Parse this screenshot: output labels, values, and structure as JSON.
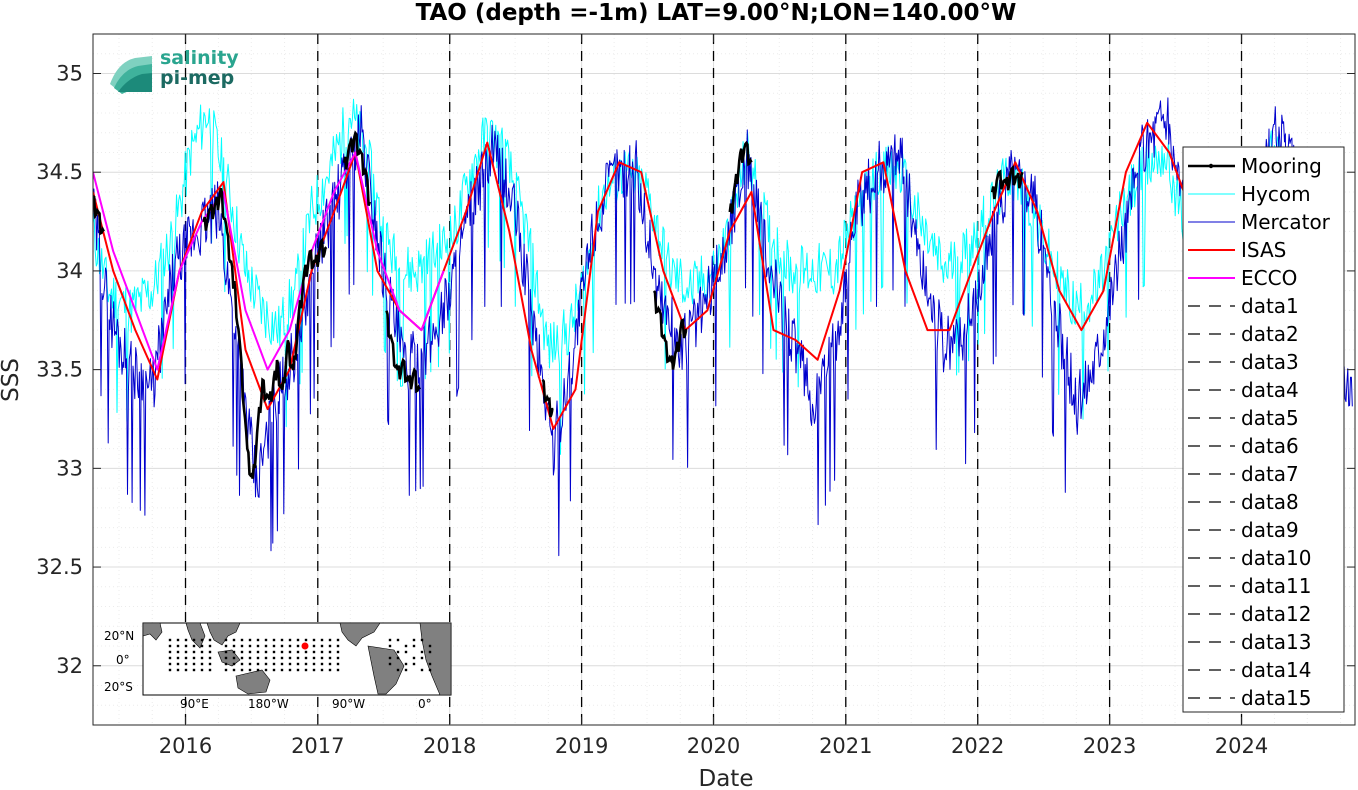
{
  "chart_data": {
    "type": "line",
    "title": "TAO (depth =-1m) LAT=9.00°N;LON=140.00°W",
    "xlabel": "Date",
    "ylabel": "SSS",
    "xlim": [
      "2015-04-20",
      "2024-11-10"
    ],
    "ylim": [
      31.7,
      35.2
    ],
    "x_ticks": [
      "2016",
      "2017",
      "2018",
      "2019",
      "2020",
      "2021",
      "2022",
      "2023",
      "2024"
    ],
    "y_ticks": [
      32,
      32.5,
      33,
      33.5,
      34,
      34.5,
      35
    ],
    "grid": true,
    "legend_position": "right",
    "vertical_dashed_lines": [
      "2016-01-01",
      "2017-01-01",
      "2018-01-01",
      "2019-01-01",
      "2020-01-01",
      "2021-01-01",
      "2022-01-01",
      "2023-01-01",
      "2024-01-01"
    ],
    "series": [
      {
        "name": "Mooring",
        "color": "#000000",
        "style": "solid-thick",
        "segments": [
          [
            [
              "2015-04-20",
              34.38
            ],
            [
              "2015-05-05",
              34.3
            ],
            [
              "2015-05-20",
              34.2
            ]
          ],
          [
            [
              "2016-02-20",
              34.25
            ],
            [
              "2016-03-10",
              34.32
            ],
            [
              "2016-03-25",
              34.35
            ],
            [
              "2016-04-08",
              34.42
            ],
            [
              "2016-04-25",
              34.2
            ],
            [
              "2016-05-15",
              33.95
            ],
            [
              "2016-06-01",
              33.6
            ],
            [
              "2016-06-20",
              33.1
            ],
            [
              "2016-07-05",
              32.95
            ],
            [
              "2016-07-20",
              33.25
            ],
            [
              "2016-08-01",
              33.45
            ],
            [
              "2016-08-20",
              33.35
            ],
            [
              "2016-09-10",
              33.55
            ],
            [
              "2016-09-25",
              33.4
            ],
            [
              "2016-10-10",
              33.65
            ],
            [
              "2016-10-25",
              33.5
            ],
            [
              "2016-11-10",
              33.8
            ],
            [
              "2016-11-25",
              34.0
            ],
            [
              "2016-12-10",
              34.1
            ],
            [
              "2016-12-25",
              34.05
            ],
            [
              "2017-01-10",
              34.15
            ],
            [
              "2017-01-25",
              34.12
            ]
          ],
          [
            [
              "2017-03-15",
              34.55
            ],
            [
              "2017-04-01",
              34.65
            ],
            [
              "2017-04-15",
              34.7
            ],
            [
              "2017-05-01",
              34.6
            ],
            [
              "2017-05-15",
              34.5
            ],
            [
              "2017-05-25",
              34.35
            ]
          ],
          [
            [
              "2017-07-10",
              33.8
            ],
            [
              "2017-07-25",
              33.65
            ],
            [
              "2017-08-10",
              33.5
            ],
            [
              "2017-08-25",
              33.55
            ],
            [
              "2017-09-10",
              33.45
            ],
            [
              "2017-09-25",
              33.5
            ],
            [
              "2017-10-10",
              33.4
            ]
          ],
          [
            [
              "2018-09-15",
              33.45
            ],
            [
              "2018-10-01",
              33.35
            ],
            [
              "2018-10-15",
              33.3
            ]
          ],
          [
            [
              "2019-07-20",
              33.9
            ],
            [
              "2019-08-05",
              33.8
            ],
            [
              "2019-08-20",
              33.65
            ],
            [
              "2019-09-05",
              33.55
            ],
            [
              "2019-09-20",
              33.6
            ],
            [
              "2019-10-05",
              33.75
            ],
            [
              "2019-10-20",
              33.7
            ]
          ],
          [
            [
              "2020-02-15",
              34.3
            ],
            [
              "2020-03-01",
              34.45
            ],
            [
              "2020-03-15",
              34.6
            ],
            [
              "2020-04-01",
              34.65
            ],
            [
              "2020-04-15",
              34.55
            ]
          ],
          [
            [
              "2022-02-10",
              34.4
            ],
            [
              "2022-03-01",
              34.5
            ],
            [
              "2022-03-20",
              34.45
            ],
            [
              "2022-04-05",
              34.52
            ],
            [
              "2022-04-20",
              34.48
            ],
            [
              "2022-05-05",
              34.5
            ]
          ]
        ]
      },
      {
        "name": "Hycom",
        "color": "#00FFFF",
        "style": "solid-thin",
        "x": [
          "2015-04-20",
          "2015-06-01",
          "2015-08-01",
          "2015-10-01",
          "2015-12-01",
          "2016-01-15",
          "2016-03-01",
          "2016-05-01",
          "2016-06-15",
          "2016-08-01",
          "2016-09-15",
          "2016-11-01",
          "2016-12-15",
          "2017-02-01",
          "2017-04-01",
          "2017-05-15",
          "2017-07-01",
          "2017-08-15",
          "2017-10-01",
          "2017-12-01",
          "2018-01-15",
          "2018-03-01",
          "2018-04-15",
          "2018-06-01",
          "2018-08-01",
          "2018-10-01",
          "2018-12-01",
          "2019-01-15",
          "2019-03-01",
          "2019-05-01",
          "2019-07-01",
          "2019-09-01",
          "2019-11-01",
          "2020-01-01",
          "2020-02-15",
          "2020-04-01",
          "2020-06-01",
          "2020-08-01",
          "2020-10-01",
          "2020-12-01",
          "2021-02-01",
          "2021-04-01",
          "2021-06-01",
          "2021-08-01",
          "2021-10-01",
          "2021-12-01",
          "2022-02-01",
          "2022-04-01",
          "2022-06-01",
          "2022-08-01",
          "2022-10-01",
          "2022-12-01",
          "2023-02-01",
          "2023-04-01",
          "2023-06-01",
          "2023-08-01",
          "2023-10-01",
          "2023-12-01",
          "2024-02-01",
          "2024-04-01",
          "2024-06-01"
        ],
        "values": [
          34.2,
          33.9,
          33.8,
          33.9,
          34.2,
          34.6,
          34.8,
          34.4,
          34.0,
          33.8,
          33.7,
          33.9,
          34.3,
          34.5,
          34.8,
          34.6,
          34.2,
          34.0,
          34.0,
          34.1,
          34.2,
          34.5,
          34.7,
          34.6,
          34.2,
          33.6,
          33.7,
          34.0,
          34.4,
          34.5,
          34.4,
          34.0,
          33.9,
          34.0,
          34.2,
          34.6,
          34.2,
          34.0,
          34.0,
          34.0,
          34.3,
          34.5,
          34.5,
          34.2,
          34.0,
          34.1,
          34.3,
          34.5,
          34.3,
          34.0,
          33.8,
          33.9,
          34.3,
          34.5,
          34.6,
          34.2,
          34.1,
          34.1,
          34.4,
          34.6,
          34.5
        ]
      },
      {
        "name": "Mercator",
        "color": "#0000CD",
        "style": "solid-thin",
        "x": [
          "2015-04-20",
          "2015-06-01",
          "2015-08-01",
          "2015-10-01",
          "2015-12-01",
          "2016-02-01",
          "2016-04-01",
          "2016-06-01",
          "2016-07-15",
          "2016-09-01",
          "2016-11-01",
          "2017-01-01",
          "2017-03-01",
          "2017-05-01",
          "2017-07-01",
          "2017-09-01",
          "2017-11-01",
          "2018-01-01",
          "2018-03-01",
          "2018-05-01",
          "2018-07-01",
          "2018-09-01",
          "2018-10-15",
          "2018-12-01",
          "2019-02-01",
          "2019-04-01",
          "2019-06-01",
          "2019-08-01",
          "2019-10-01",
          "2019-12-01",
          "2020-02-01",
          "2020-04-01",
          "2020-06-01",
          "2020-08-01",
          "2020-10-01",
          "2020-12-01",
          "2021-02-01",
          "2021-04-01",
          "2021-06-01",
          "2021-08-01",
          "2021-10-01",
          "2021-12-01",
          "2022-02-01",
          "2022-04-01",
          "2022-06-01",
          "2022-08-01",
          "2022-10-01",
          "2022-12-01",
          "2023-02-01",
          "2023-04-01",
          "2023-06-01",
          "2023-08-01",
          "2023-10-01",
          "2023-12-01",
          "2024-02-01",
          "2024-04-01",
          "2024-06-01",
          "2024-08-01",
          "2024-10-01",
          "2024-11-05"
        ],
        "values": [
          34.3,
          33.8,
          33.5,
          33.4,
          34.0,
          34.2,
          34.3,
          33.5,
          32.9,
          33.3,
          33.6,
          34.1,
          34.4,
          34.7,
          34.0,
          33.5,
          33.6,
          33.9,
          34.3,
          34.6,
          34.3,
          33.6,
          33.1,
          33.5,
          34.2,
          34.5,
          34.5,
          33.9,
          33.6,
          33.8,
          34.1,
          34.6,
          34.0,
          33.7,
          33.3,
          33.6,
          34.3,
          34.5,
          34.6,
          34.0,
          33.6,
          33.7,
          34.1,
          34.5,
          34.4,
          33.8,
          33.3,
          33.6,
          34.1,
          34.6,
          34.8,
          34.3,
          33.9,
          34.0,
          34.3,
          34.7,
          34.5,
          33.9,
          33.5,
          33.4
        ]
      },
      {
        "name": "ISAS",
        "color": "#FF0000",
        "style": "solid-medium",
        "x": [
          "2015-04-20",
          "2015-06-15",
          "2015-08-15",
          "2015-10-15",
          "2015-12-15",
          "2016-02-15",
          "2016-04-15",
          "2016-06-15",
          "2016-08-15",
          "2016-10-15",
          "2016-12-15",
          "2017-02-15",
          "2017-04-15",
          "2017-06-15",
          "2017-08-15",
          "2017-10-15",
          "2017-12-15",
          "2018-02-15",
          "2018-04-15",
          "2018-06-15",
          "2018-08-15",
          "2018-10-15",
          "2018-12-15",
          "2019-02-15",
          "2019-04-15",
          "2019-06-15",
          "2019-08-15",
          "2019-10-15",
          "2019-12-15",
          "2020-02-15",
          "2020-04-15",
          "2020-06-15",
          "2020-08-15",
          "2020-10-15",
          "2020-12-15",
          "2021-02-15",
          "2021-04-15",
          "2021-06-15",
          "2021-08-15",
          "2021-10-15",
          "2021-12-15",
          "2022-02-15",
          "2022-04-15",
          "2022-06-15",
          "2022-08-15",
          "2022-10-15",
          "2022-12-15",
          "2023-02-15",
          "2023-04-15",
          "2023-06-15",
          "2023-08-15"
        ],
        "values": [
          34.4,
          34.0,
          33.7,
          33.45,
          34.0,
          34.3,
          34.45,
          33.6,
          33.3,
          33.5,
          34.0,
          34.3,
          34.6,
          34.0,
          33.8,
          33.7,
          34.0,
          34.3,
          34.65,
          34.2,
          33.6,
          33.2,
          33.4,
          34.3,
          34.55,
          34.5,
          34.0,
          33.7,
          33.8,
          34.2,
          34.4,
          33.7,
          33.65,
          33.55,
          33.9,
          34.5,
          34.55,
          34.0,
          33.7,
          33.7,
          34.0,
          34.3,
          34.55,
          34.3,
          33.9,
          33.7,
          33.9,
          34.5,
          34.75,
          34.6,
          34.3
        ]
      },
      {
        "name": "ECCO",
        "color": "#FF00FF",
        "style": "solid-medium",
        "x": [
          "2015-04-20",
          "2015-06-15",
          "2015-08-15",
          "2015-10-15",
          "2015-12-15",
          "2016-02-15",
          "2016-04-15",
          "2016-06-15",
          "2016-08-15",
          "2016-10-15",
          "2016-12-15",
          "2017-02-15",
          "2017-04-15",
          "2017-06-15",
          "2017-08-15",
          "2017-10-15",
          "2017-12-15"
        ],
        "values": [
          34.5,
          34.1,
          33.8,
          33.5,
          34.0,
          34.25,
          34.4,
          33.8,
          33.5,
          33.7,
          34.1,
          34.4,
          34.6,
          34.1,
          33.8,
          33.7,
          34.0
        ]
      },
      {
        "name": "data1",
        "color": "#000000",
        "style": "dashed"
      },
      {
        "name": "data2",
        "color": "#000000",
        "style": "dashed"
      },
      {
        "name": "data3",
        "color": "#000000",
        "style": "dashed"
      },
      {
        "name": "data4",
        "color": "#000000",
        "style": "dashed"
      },
      {
        "name": "data5",
        "color": "#000000",
        "style": "dashed"
      },
      {
        "name": "data6",
        "color": "#000000",
        "style": "dashed"
      },
      {
        "name": "data7",
        "color": "#000000",
        "style": "dashed"
      },
      {
        "name": "data8",
        "color": "#000000",
        "style": "dashed"
      },
      {
        "name": "data9",
        "color": "#000000",
        "style": "dashed"
      },
      {
        "name": "data10",
        "color": "#000000",
        "style": "dashed"
      },
      {
        "name": "data11",
        "color": "#000000",
        "style": "dashed"
      },
      {
        "name": "data12",
        "color": "#000000",
        "style": "dashed"
      },
      {
        "name": "data13",
        "color": "#000000",
        "style": "dashed"
      },
      {
        "name": "data14",
        "color": "#000000",
        "style": "dashed"
      },
      {
        "name": "data15",
        "color": "#000000",
        "style": "dashed"
      }
    ]
  },
  "logo": {
    "line1": "salinity",
    "line2": "pi-mep",
    "color": "#2aa58f",
    "color2": "#1c6a62"
  },
  "inset_map": {
    "lat_labels": [
      "20°N",
      "0°",
      "20°S"
    ],
    "lon_labels": [
      "90°E",
      "180°W",
      "90°W",
      "0°"
    ],
    "highlight_color": "#ff0000"
  }
}
